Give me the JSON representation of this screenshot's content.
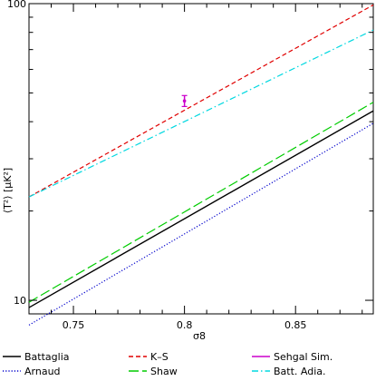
{
  "chart_data": {
    "type": "line",
    "title": "",
    "xlabel": "σ8",
    "ylabel": "⟨T²⟩ [μK²]",
    "xlim": [
      0.73,
      0.885
    ],
    "ylim": [
      9,
      100
    ],
    "yscale": "log",
    "x_ticks": [
      0.75,
      0.8,
      0.85
    ],
    "x_tick_labels": [
      "0.75",
      "0.8",
      "0.85"
    ],
    "y_ticks": [
      10,
      100
    ],
    "y_tick_labels": [
      "10",
      "100"
    ],
    "grid": false,
    "legend_position": "bottom",
    "series": [
      {
        "name": "Battaglia",
        "style": "solid",
        "color": "#000000",
        "x": [
          0.73,
          0.885
        ],
        "y": [
          9.45,
          43.5
        ]
      },
      {
        "name": "Arnaud",
        "style": "dotted",
        "color": "#0000cc",
        "x": [
          0.73,
          0.885
        ],
        "y": [
          8.25,
          39.5
        ]
      },
      {
        "name": "K–S",
        "style": "short-dash",
        "color": "#e00000",
        "x": [
          0.73,
          0.885
        ],
        "y": [
          22.3,
          99.0
        ]
      },
      {
        "name": "Shaw",
        "style": "long-dash",
        "color": "#00cc00",
        "x": [
          0.73,
          0.885
        ],
        "y": [
          9.85,
          46.5
        ]
      },
      {
        "name": "Sehgal Sim.",
        "style": "errorbar",
        "color": "#cc00cc",
        "x": [
          0.8
        ],
        "y": [
          47.0
        ],
        "yerr": [
          2.0
        ]
      },
      {
        "name": "Batt. Adia.",
        "style": "dash-dot",
        "color": "#00d8e0",
        "x": [
          0.73,
          0.885
        ],
        "y": [
          22.3,
          81.5
        ]
      }
    ]
  }
}
